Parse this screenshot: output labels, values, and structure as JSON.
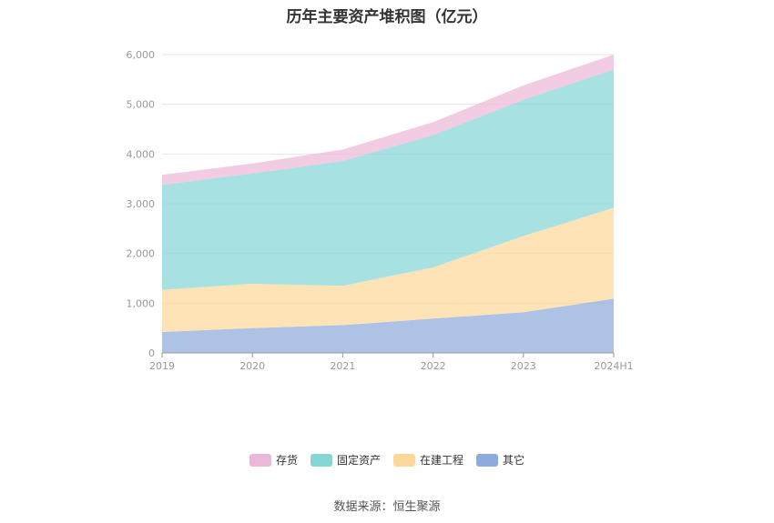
{
  "chart_data": {
    "type": "area",
    "stacked": true,
    "title": "历年主要资产堆积图（亿元）",
    "categories": [
      "2019",
      "2020",
      "2021",
      "2022",
      "2023",
      "2024H1"
    ],
    "series": [
      {
        "name": "其它",
        "color": "#8faadc",
        "values": [
          420,
          500,
          560,
          690,
          820,
          1090
        ]
      },
      {
        "name": "在建工程",
        "color": "#fdd89a",
        "values": [
          850,
          890,
          790,
          1030,
          1530,
          1830
        ]
      },
      {
        "name": "固定资产",
        "color": "#86d6d6",
        "values": [
          2110,
          2220,
          2510,
          2660,
          2740,
          2780
        ]
      },
      {
        "name": "存货",
        "color": "#ebb8d8",
        "values": [
          200,
          200,
          230,
          260,
          290,
          300
        ]
      }
    ],
    "ylim": [
      0,
      6000
    ],
    "yticks": [
      0,
      1000,
      2000,
      3000,
      4000,
      5000,
      6000
    ],
    "ytick_labels": [
      "0",
      "1,000",
      "2,000",
      "3,000",
      "4,000",
      "5,000",
      "6,000"
    ],
    "legend_order": [
      "存货",
      "固定资产",
      "在建工程",
      "其它"
    ],
    "legend_position": "bottom",
    "grid": true
  },
  "source": "数据来源：恒生聚源"
}
